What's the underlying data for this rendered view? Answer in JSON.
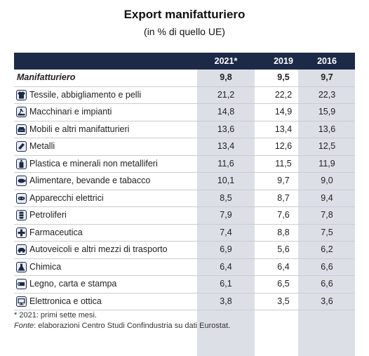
{
  "title": "Export manifatturiero",
  "subtitle": "(in % di quello UE)",
  "columns": [
    "2021*",
    "2019",
    "2016"
  ],
  "total": {
    "label": "Manifatturiero",
    "values": [
      "9,8",
      "9,5",
      "9,7"
    ]
  },
  "rows": [
    {
      "label": "Tessile, abbigliamento e pelli",
      "icon": "shirt-icon",
      "values": [
        "21,2",
        "22,2",
        "22,3"
      ]
    },
    {
      "label": "Macchinari e impianti",
      "icon": "machinery-icon",
      "values": [
        "14,8",
        "14,9",
        "15,9"
      ]
    },
    {
      "label": "Mobili e altri manifatturieri",
      "icon": "sofa-icon",
      "values": [
        "13,6",
        "13,4",
        "13,6"
      ]
    },
    {
      "label": "Metalli",
      "icon": "metal-bar-icon",
      "values": [
        "13,4",
        "12,6",
        "12,5"
      ]
    },
    {
      "label": "Plastica e minerali non metalliferi",
      "icon": "bottle-icon",
      "values": [
        "11,6",
        "11,5",
        "11,9"
      ]
    },
    {
      "label": "Alimentare, bevande e tabacco",
      "icon": "food-icon",
      "values": [
        "10,1",
        "9,7",
        "9,0"
      ]
    },
    {
      "label": "Apparecchi elettrici",
      "icon": "plug-icon",
      "values": [
        "8,5",
        "8,7",
        "9,4"
      ]
    },
    {
      "label": "Petroliferi",
      "icon": "barrel-icon",
      "values": [
        "7,9",
        "7,6",
        "7,8"
      ]
    },
    {
      "label": "Farmaceutica",
      "icon": "medical-cross-icon",
      "values": [
        "7,4",
        "8,8",
        "7,5"
      ]
    },
    {
      "label": "Autoveicoli e altri mezzi di trasporto",
      "icon": "car-icon",
      "values": [
        "6,9",
        "5,6",
        "6,2"
      ]
    },
    {
      "label": "Chimica",
      "icon": "flask-icon",
      "values": [
        "6,4",
        "6,4",
        "6,6"
      ]
    },
    {
      "label": "Legno, carta e stampa",
      "icon": "log-icon",
      "values": [
        "6,1",
        "6,5",
        "6,6"
      ]
    },
    {
      "label": "Elettronica e ottica",
      "icon": "monitor-icon",
      "values": [
        "3,8",
        "3,5",
        "3,6"
      ]
    }
  ],
  "notes": {
    "footnote": "* 2021: primi sette mesi.",
    "source_prefix": "Fonte",
    "source_text": ": elaborazioni Centro Studi Confindustria su dati Eurostat."
  }
}
